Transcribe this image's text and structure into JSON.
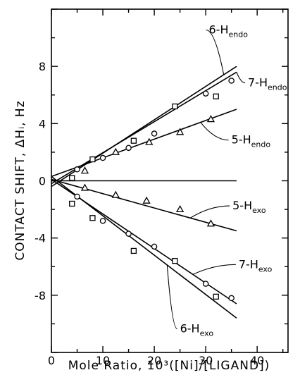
{
  "chart_data": {
    "type": "scatter",
    "xlabel": "Mole Ratio, 10³([Ni]/[LIGAND])",
    "ylabel": "CONTACT SHIFT, ΔHᵢ, Hz",
    "xlim": [
      0,
      46
    ],
    "ylim": [
      -12,
      12
    ],
    "x_ticks": [
      0,
      10,
      20,
      30,
      40
    ],
    "y_ticks": [
      8,
      4,
      0,
      -4,
      -8
    ],
    "grid": false,
    "series": [
      {
        "name": "6-H_endo",
        "label_main": "6-H",
        "label_sub": "endo",
        "marker": "square",
        "fit": [
          [
            0,
            -0.4
          ],
          [
            36,
            8.0
          ]
        ],
        "points": [
          [
            4,
            0.2
          ],
          [
            8,
            1.5
          ],
          [
            16,
            2.8
          ],
          [
            24,
            5.2
          ],
          [
            32,
            5.9
          ]
        ]
      },
      {
        "name": "7-H_endo",
        "label_main": "7-H",
        "label_sub": "endo",
        "marker": "circle",
        "fit": [
          [
            0,
            -0.2
          ],
          [
            36,
            7.6
          ]
        ],
        "points": [
          [
            5,
            0.8
          ],
          [
            10,
            1.6
          ],
          [
            15,
            2.3
          ],
          [
            20,
            3.3
          ],
          [
            30,
            6.1
          ],
          [
            35,
            7.0
          ]
        ]
      },
      {
        "name": "5-H_endo",
        "label_main": "5-H",
        "label_sub": "endo",
        "marker": "triangle",
        "fit": [
          [
            0,
            0.3
          ],
          [
            36,
            5.0
          ]
        ],
        "points": [
          [
            6.5,
            0.7
          ],
          [
            12.5,
            2.0
          ],
          [
            19,
            2.7
          ],
          [
            25,
            3.4
          ],
          [
            31,
            4.3
          ]
        ]
      },
      {
        "name": "baseline",
        "marker": "none",
        "fit": [
          [
            0,
            0
          ],
          [
            36,
            0
          ]
        ],
        "points": []
      },
      {
        "name": "5-H_exo",
        "label_main": "5-H",
        "label_sub": "exo",
        "marker": "triangle",
        "fit": [
          [
            0,
            0.1
          ],
          [
            36,
            -3.5
          ]
        ],
        "points": [
          [
            6.5,
            -0.5
          ],
          [
            12.5,
            -1.0
          ],
          [
            18.5,
            -1.4
          ],
          [
            25,
            -2.0
          ],
          [
            31,
            -3.0
          ]
        ]
      },
      {
        "name": "7-H_exo",
        "label_main": "7-H",
        "label_sub": "exo",
        "marker": "circle",
        "fit": [
          [
            0,
            0.1
          ],
          [
            36,
            -8.6
          ]
        ],
        "points": [
          [
            5,
            -1.1
          ],
          [
            10,
            -2.8
          ],
          [
            15,
            -3.7
          ],
          [
            20,
            -4.6
          ],
          [
            30,
            -7.2
          ],
          [
            35,
            -8.2
          ]
        ]
      },
      {
        "name": "6-H_exo",
        "label_main": "6-H",
        "label_sub": "exo",
        "marker": "square",
        "fit": [
          [
            0,
            0.3
          ],
          [
            36,
            -9.6
          ]
        ],
        "points": [
          [
            4,
            -1.6
          ],
          [
            8,
            -2.6
          ],
          [
            16,
            -4.9
          ],
          [
            24,
            -5.6
          ],
          [
            32,
            -8.1
          ]
        ]
      }
    ]
  }
}
